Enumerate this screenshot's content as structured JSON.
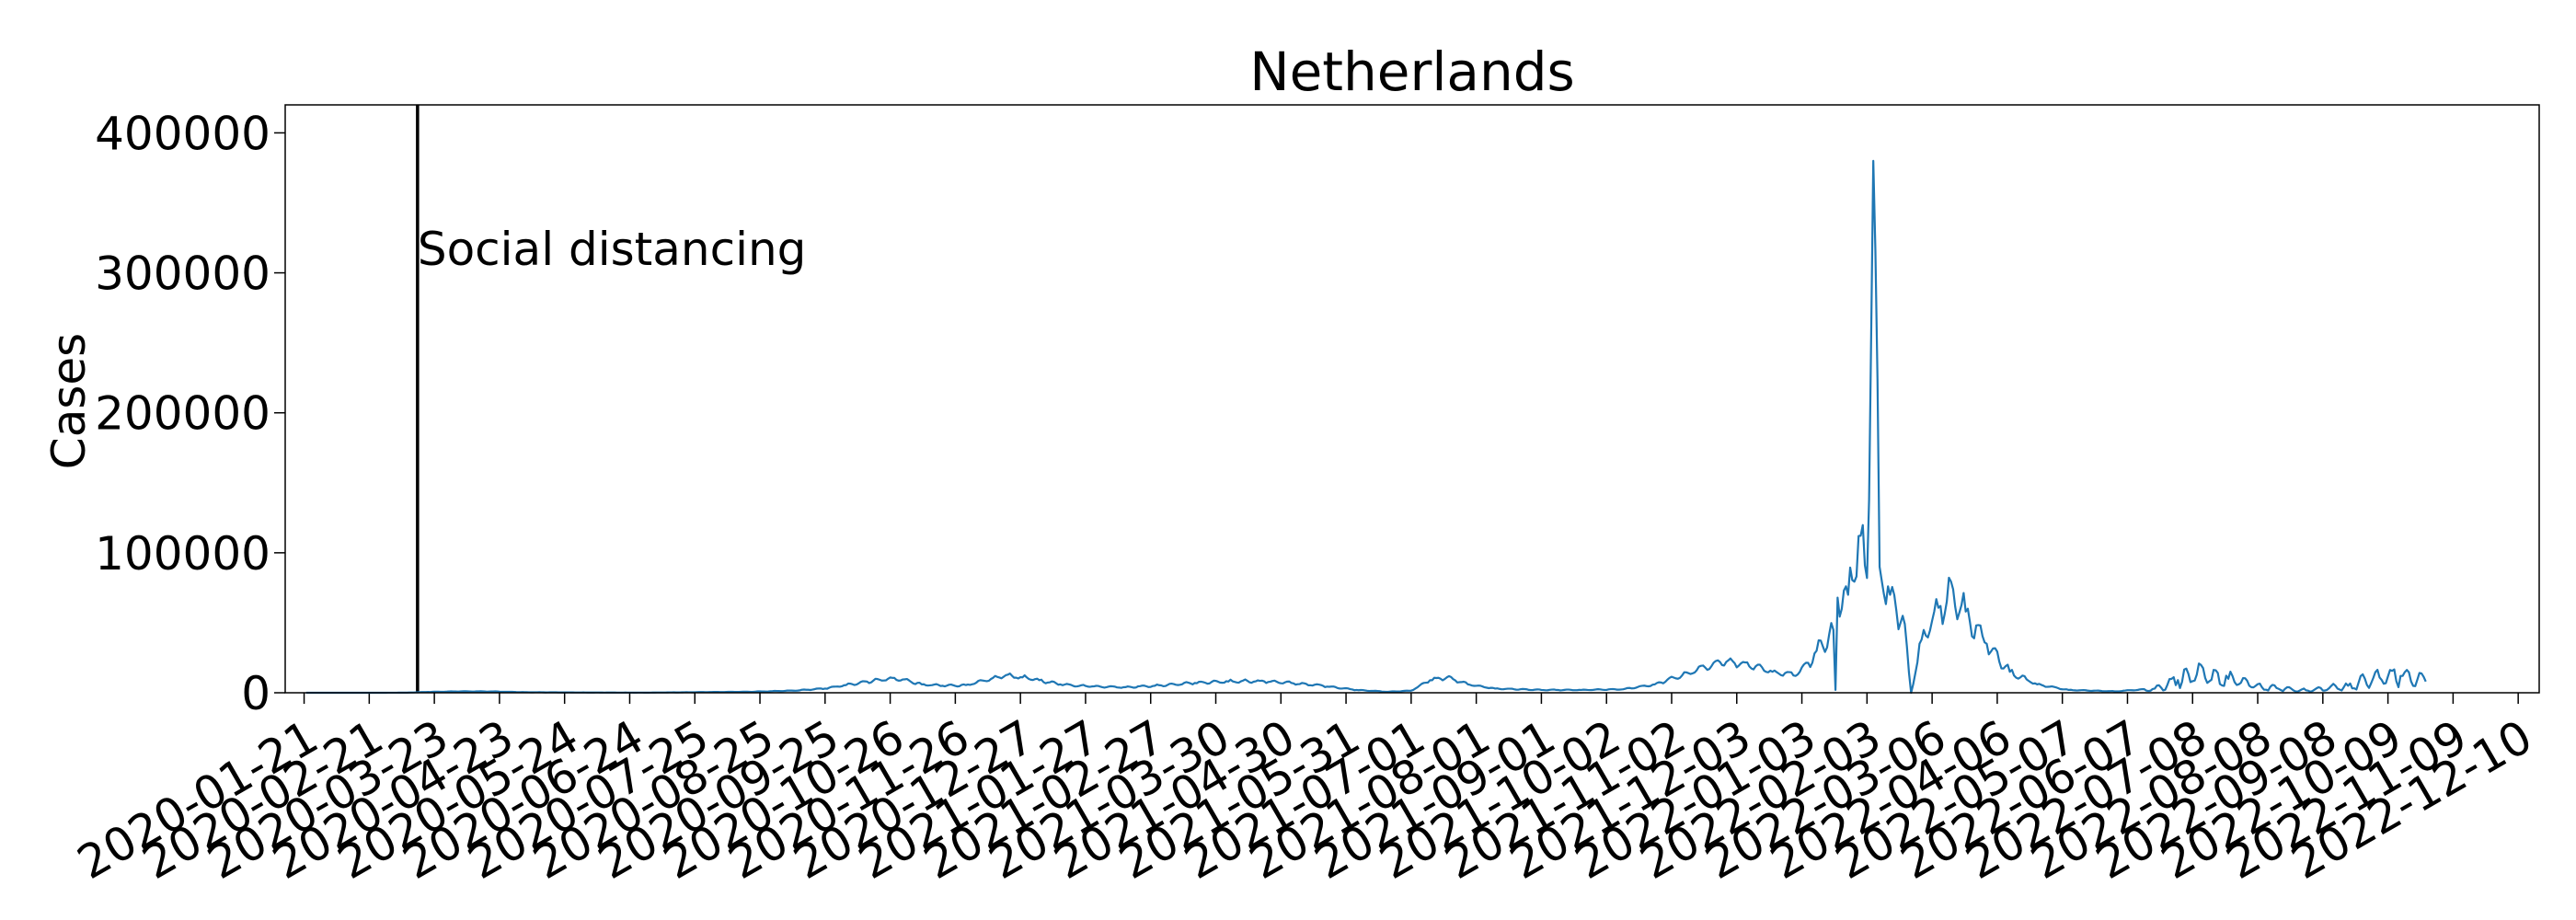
{
  "chart_data": {
    "type": "line",
    "title": "Netherlands",
    "xlabel": "",
    "ylabel": "Cases",
    "ylim": [
      0,
      420000
    ],
    "xlim": [
      "2020-01-12",
      "2022-12-20"
    ],
    "yticks": [
      0,
      100000,
      200000,
      300000,
      400000
    ],
    "xticks": [
      "2020-01-21",
      "2020-02-21",
      "2020-03-23",
      "2020-04-23",
      "2020-05-24",
      "2020-06-24",
      "2020-07-25",
      "2020-08-25",
      "2020-09-25",
      "2020-10-26",
      "2020-11-26",
      "2020-12-27",
      "2021-01-27",
      "2021-02-27",
      "2021-03-30",
      "2021-04-30",
      "2021-05-31",
      "2021-07-01",
      "2021-08-01",
      "2021-09-01",
      "2021-10-02",
      "2021-11-02",
      "2021-12-03",
      "2022-01-03",
      "2022-02-03",
      "2022-03-06",
      "2022-04-06",
      "2022-05-07",
      "2022-06-07",
      "2022-07-08",
      "2022-08-08",
      "2022-09-08",
      "2022-10-09",
      "2022-11-09",
      "2022-12-10"
    ],
    "grid": false,
    "line_color": "#1f77b4",
    "annotations": [
      {
        "x": "2020-03-15",
        "text": "Social distancing"
      }
    ],
    "series": [
      {
        "values": [
          [
            "2020-01-22",
            0
          ],
          [
            "2020-02-27",
            0
          ],
          [
            "2020-03-10",
            100
          ],
          [
            "2020-03-20",
            600
          ],
          [
            "2020-04-05",
            1000
          ],
          [
            "2020-04-20",
            900
          ],
          [
            "2020-05-05",
            400
          ],
          [
            "2020-06-01",
            200
          ],
          [
            "2020-07-01",
            100
          ],
          [
            "2020-08-01",
            500
          ],
          [
            "2020-08-20",
            700
          ],
          [
            "2020-09-10",
            1500
          ],
          [
            "2020-09-25",
            3000
          ],
          [
            "2020-10-05",
            5500
          ],
          [
            "2020-10-15",
            8000
          ],
          [
            "2020-10-25",
            10000
          ],
          [
            "2020-11-01",
            9500
          ],
          [
            "2020-11-10",
            6000
          ],
          [
            "2020-11-20",
            5000
          ],
          [
            "2020-12-01",
            5500
          ],
          [
            "2020-12-10",
            8500
          ],
          [
            "2020-12-20",
            12500
          ],
          [
            "2020-12-28",
            11000
          ],
          [
            "2021-01-05",
            9000
          ],
          [
            "2021-01-15",
            6000
          ],
          [
            "2021-01-30",
            4500
          ],
          [
            "2021-02-15",
            4000
          ],
          [
            "2021-03-01",
            5000
          ],
          [
            "2021-03-20",
            7000
          ],
          [
            "2021-04-05",
            8000
          ],
          [
            "2021-04-20",
            8500
          ],
          [
            "2021-05-05",
            7000
          ],
          [
            "2021-05-20",
            5000
          ],
          [
            "2021-06-05",
            2000
          ],
          [
            "2021-06-20",
            700
          ],
          [
            "2021-07-01",
            1500
          ],
          [
            "2021-07-10",
            9000
          ],
          [
            "2021-07-18",
            11000
          ],
          [
            "2021-07-28",
            6000
          ],
          [
            "2021-08-10",
            3000
          ],
          [
            "2021-09-01",
            2000
          ],
          [
            "2021-09-20",
            2000
          ],
          [
            "2021-10-10",
            2500
          ],
          [
            "2021-10-25",
            6000
          ],
          [
            "2021-11-10",
            14000
          ],
          [
            "2021-11-25",
            22000
          ],
          [
            "2021-12-05",
            21000
          ],
          [
            "2021-12-20",
            15000
          ],
          [
            "2022-01-01",
            13000
          ],
          [
            "2022-01-10",
            30000
          ],
          [
            "2022-01-18",
            45000
          ],
          [
            "2022-01-19",
            2000
          ],
          [
            "2022-01-20",
            68000
          ],
          [
            "2022-01-25",
            70000
          ],
          [
            "2022-01-30",
            112000
          ],
          [
            "2022-02-03",
            82000
          ],
          [
            "2022-02-06",
            380000
          ],
          [
            "2022-02-09",
            90000
          ],
          [
            "2022-02-14",
            70000
          ],
          [
            "2022-02-20",
            55000
          ],
          [
            "2022-02-24",
            0
          ],
          [
            "2022-03-01",
            38000
          ],
          [
            "2022-03-10",
            62000
          ],
          [
            "2022-03-16",
            74000
          ],
          [
            "2022-03-22",
            58000
          ],
          [
            "2022-04-01",
            35000
          ],
          [
            "2022-04-12",
            15000
          ],
          [
            "2022-04-25",
            6000
          ],
          [
            "2022-05-10",
            2000
          ],
          [
            "2022-06-01",
            1000
          ],
          [
            "2022-06-20",
            3000
          ],
          [
            "2022-07-01",
            9000
          ],
          [
            "2022-07-10",
            13000
          ],
          [
            "2022-07-25",
            10000
          ],
          [
            "2022-08-10",
            4000
          ],
          [
            "2022-09-01",
            1500
          ],
          [
            "2022-09-20",
            5000
          ],
          [
            "2022-10-05",
            11000
          ],
          [
            "2022-10-15",
            12000
          ],
          [
            "2022-10-27",
            8000
          ]
        ]
      }
    ]
  }
}
